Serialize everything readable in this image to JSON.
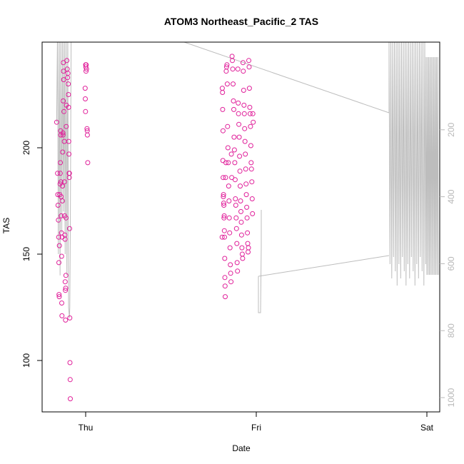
{
  "chart_data": {
    "type": "scatter",
    "title": "ATOM3 Northeast_Pacific_2 TAS",
    "xlabel": "Date",
    "ylabel": "TAS",
    "x_ticks": [
      "Thu",
      "Fri",
      "Sat"
    ],
    "y_ticks": [
      100,
      150,
      200
    ],
    "y2_ticks": [
      200,
      400,
      600,
      800,
      1000
    ],
    "ylim": [
      78,
      250
    ],
    "y2lim": [
      1030,
      170
    ],
    "xlim": [
      -0.21,
      1.04
    ],
    "grid": false,
    "colors": {
      "points": "#e0209a",
      "line": "#bdbdbd",
      "axis": "#000000",
      "right_axis": "#b8b8b8"
    },
    "points": [
      [
        -0.17,
        212
      ],
      [
        -0.165,
        188
      ],
      [
        -0.163,
        178
      ],
      [
        -0.162,
        173
      ],
      [
        -0.16,
        166
      ],
      [
        -0.158,
        158
      ],
      [
        -0.157,
        146
      ],
      [
        -0.156,
        131
      ],
      [
        -0.155,
        130
      ],
      [
        -0.154,
        154
      ],
      [
        -0.152,
        178
      ],
      [
        -0.15,
        183
      ],
      [
        -0.149,
        188
      ],
      [
        -0.148,
        193
      ],
      [
        -0.147,
        208
      ],
      [
        -0.146,
        206
      ],
      [
        -0.145,
        184
      ],
      [
        -0.144,
        177
      ],
      [
        -0.143,
        168
      ],
      [
        -0.142,
        160
      ],
      [
        -0.141,
        149
      ],
      [
        -0.14,
        127
      ],
      [
        -0.139,
        121
      ],
      [
        -0.138,
        158
      ],
      [
        -0.137,
        175
      ],
      [
        -0.136,
        182
      ],
      [
        -0.135,
        198
      ],
      [
        -0.134,
        207
      ],
      [
        -0.133,
        206
      ],
      [
        -0.132,
        222
      ],
      [
        -0.131,
        240
      ],
      [
        -0.13,
        236
      ],
      [
        -0.129,
        232
      ],
      [
        -0.127,
        217
      ],
      [
        -0.125,
        203
      ],
      [
        -0.124,
        184
      ],
      [
        -0.123,
        168
      ],
      [
        -0.122,
        159
      ],
      [
        -0.121,
        157
      ],
      [
        -0.12,
        137
      ],
      [
        -0.119,
        133
      ],
      [
        -0.118,
        119
      ],
      [
        -0.117,
        134
      ],
      [
        -0.116,
        140
      ],
      [
        -0.115,
        167
      ],
      [
        -0.114,
        210
      ],
      [
        -0.113,
        220
      ],
      [
        -0.11,
        241
      ],
      [
        -0.108,
        237
      ],
      [
        -0.106,
        233
      ],
      [
        -0.104,
        235
      ],
      [
        -0.102,
        230
      ],
      [
        -0.101,
        225
      ],
      [
        -0.1,
        219
      ],
      [
        -0.099,
        203
      ],
      [
        -0.098,
        197
      ],
      [
        -0.097,
        188
      ],
      [
        -0.096,
        186
      ],
      [
        -0.095,
        188
      ],
      [
        -0.094,
        162
      ],
      [
        -0.093,
        120
      ],
      [
        -0.092,
        99
      ],
      [
        -0.091,
        91
      ],
      [
        -0.09,
        82
      ],
      [
        0.0,
        239
      ],
      [
        0.001,
        238
      ],
      [
        0.002,
        236
      ],
      [
        0.003,
        239
      ],
      [
        0.005,
        237
      ],
      [
        -0.003,
        228
      ],
      [
        -0.002,
        223
      ],
      [
        -0.001,
        217
      ],
      [
        0.008,
        209
      ],
      [
        0.009,
        208
      ],
      [
        0.01,
        206
      ],
      [
        0.012,
        193
      ],
      [
        0.8,
        158
      ],
      [
        0.801,
        228
      ],
      [
        0.802,
        226
      ],
      [
        0.803,
        218
      ],
      [
        0.804,
        194
      ],
      [
        0.805,
        208
      ],
      [
        0.806,
        186
      ],
      [
        0.807,
        177
      ],
      [
        0.808,
        178
      ],
      [
        0.809,
        174
      ],
      [
        0.81,
        173
      ],
      [
        0.811,
        167
      ],
      [
        0.812,
        168
      ],
      [
        0.813,
        161
      ],
      [
        0.814,
        158
      ],
      [
        0.815,
        148
      ],
      [
        0.816,
        139
      ],
      [
        0.817,
        135
      ],
      [
        0.818,
        130
      ],
      [
        0.82,
        186
      ],
      [
        0.822,
        193
      ],
      [
        0.824,
        236
      ],
      [
        0.826,
        238
      ],
      [
        0.828,
        239
      ],
      [
        0.83,
        230
      ],
      [
        0.832,
        210
      ],
      [
        0.834,
        200
      ],
      [
        0.836,
        193
      ],
      [
        0.838,
        182
      ],
      [
        0.84,
        175
      ],
      [
        0.842,
        167
      ],
      [
        0.844,
        160
      ],
      [
        0.846,
        153
      ],
      [
        0.848,
        145
      ],
      [
        0.85,
        141
      ],
      [
        0.852,
        137
      ],
      [
        0.854,
        197
      ],
      [
        0.856,
        186
      ],
      [
        0.858,
        243
      ],
      [
        0.86,
        241
      ],
      [
        0.862,
        237
      ],
      [
        0.864,
        230
      ],
      [
        0.866,
        222
      ],
      [
        0.868,
        218
      ],
      [
        0.87,
        205
      ],
      [
        0.872,
        199
      ],
      [
        0.874,
        193
      ],
      [
        0.876,
        185
      ],
      [
        0.878,
        176
      ],
      [
        0.88,
        173
      ],
      [
        0.882,
        167
      ],
      [
        0.884,
        162
      ],
      [
        0.886,
        155
      ],
      [
        0.888,
        146
      ],
      [
        0.89,
        142
      ],
      [
        0.892,
        237
      ],
      [
        0.894,
        221
      ],
      [
        0.896,
        216
      ],
      [
        0.898,
        211
      ],
      [
        0.9,
        205
      ],
      [
        0.902,
        196
      ],
      [
        0.904,
        189
      ],
      [
        0.906,
        182
      ],
      [
        0.908,
        175
      ],
      [
        0.91,
        170
      ],
      [
        0.912,
        165
      ],
      [
        0.914,
        159
      ],
      [
        0.916,
        153
      ],
      [
        0.918,
        150
      ],
      [
        0.92,
        148
      ],
      [
        0.922,
        240
      ],
      [
        0.924,
        236
      ],
      [
        0.926,
        227
      ],
      [
        0.928,
        220
      ],
      [
        0.93,
        216
      ],
      [
        0.932,
        209
      ],
      [
        0.934,
        203
      ],
      [
        0.936,
        197
      ],
      [
        0.938,
        190
      ],
      [
        0.94,
        183
      ],
      [
        0.942,
        178
      ],
      [
        0.944,
        172
      ],
      [
        0.946,
        167
      ],
      [
        0.948,
        160
      ],
      [
        0.95,
        155
      ],
      [
        0.952,
        151
      ],
      [
        0.954,
        153
      ],
      [
        0.956,
        241
      ],
      [
        0.958,
        238
      ],
      [
        0.96,
        228
      ],
      [
        0.962,
        219
      ],
      [
        0.964,
        216
      ],
      [
        0.966,
        210
      ],
      [
        0.968,
        201
      ],
      [
        0.97,
        193
      ],
      [
        0.972,
        190
      ],
      [
        0.974,
        184
      ],
      [
        0.976,
        176
      ],
      [
        0.978,
        169
      ],
      [
        0.98,
        216
      ],
      [
        0.982,
        212
      ]
    ]
  }
}
